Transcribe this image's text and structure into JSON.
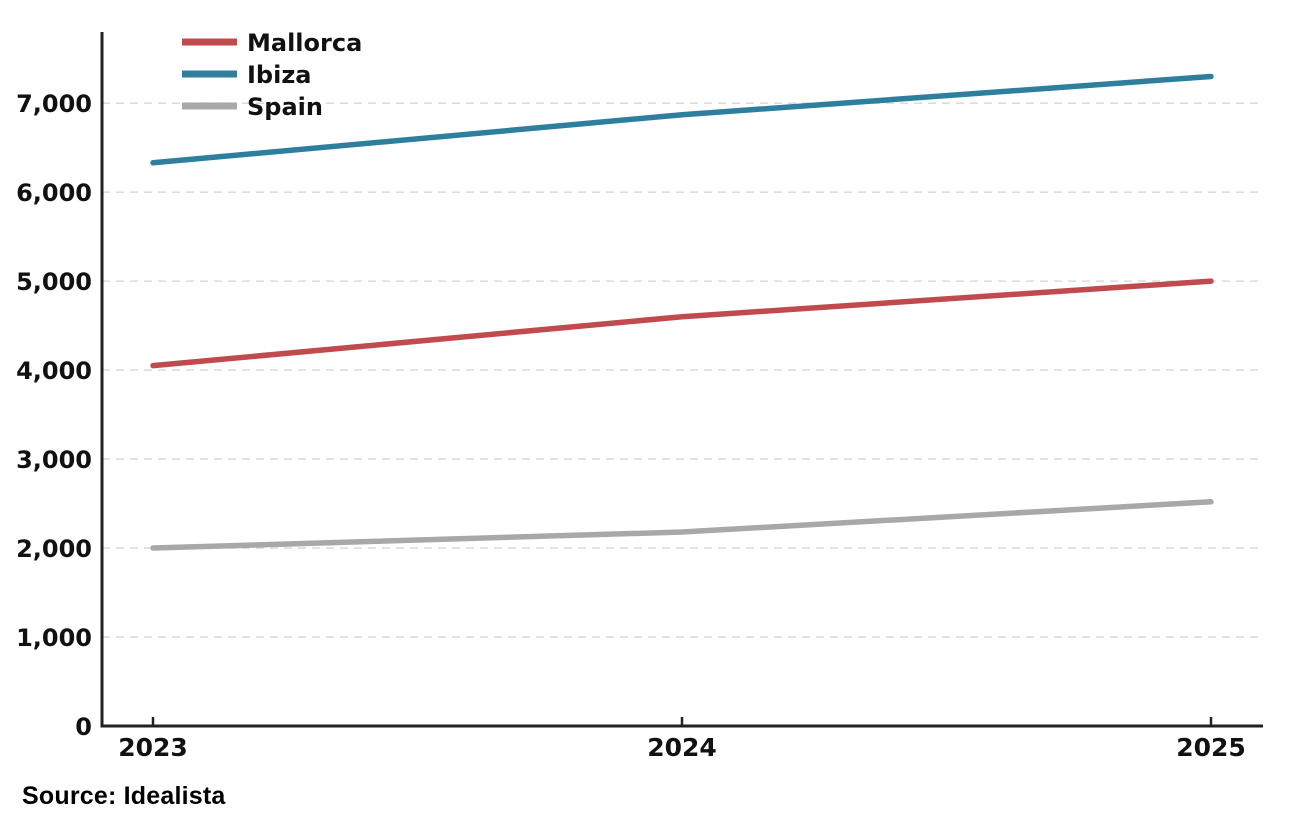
{
  "chart_data": {
    "type": "line",
    "x": [
      2023,
      2024,
      2025
    ],
    "x_labels": [
      "2023",
      "2024",
      "2025"
    ],
    "series": [
      {
        "name": "Mallorca",
        "color": "#c04a4e",
        "values": [
          4050,
          4600,
          5000
        ]
      },
      {
        "name": "Ibiza",
        "color": "#2e7f9e",
        "values": [
          6330,
          6870,
          7300
        ]
      },
      {
        "name": "Spain",
        "color": "#a8a8a8",
        "values": [
          2000,
          2180,
          2520
        ]
      }
    ],
    "title": "",
    "xlabel": "",
    "ylabel": "",
    "ylim": [
      0,
      7800
    ],
    "yticks": [
      0,
      1000,
      2000,
      3000,
      4000,
      5000,
      6000,
      7000
    ],
    "grid": "horizontal-dashed",
    "legend_position": "top-left"
  },
  "source": {
    "label": "Source: Idealista"
  },
  "colors": {
    "axis": "#222222",
    "grid": "#dcdcdc",
    "tick_text": "#111111",
    "background": "#ffffff"
  }
}
